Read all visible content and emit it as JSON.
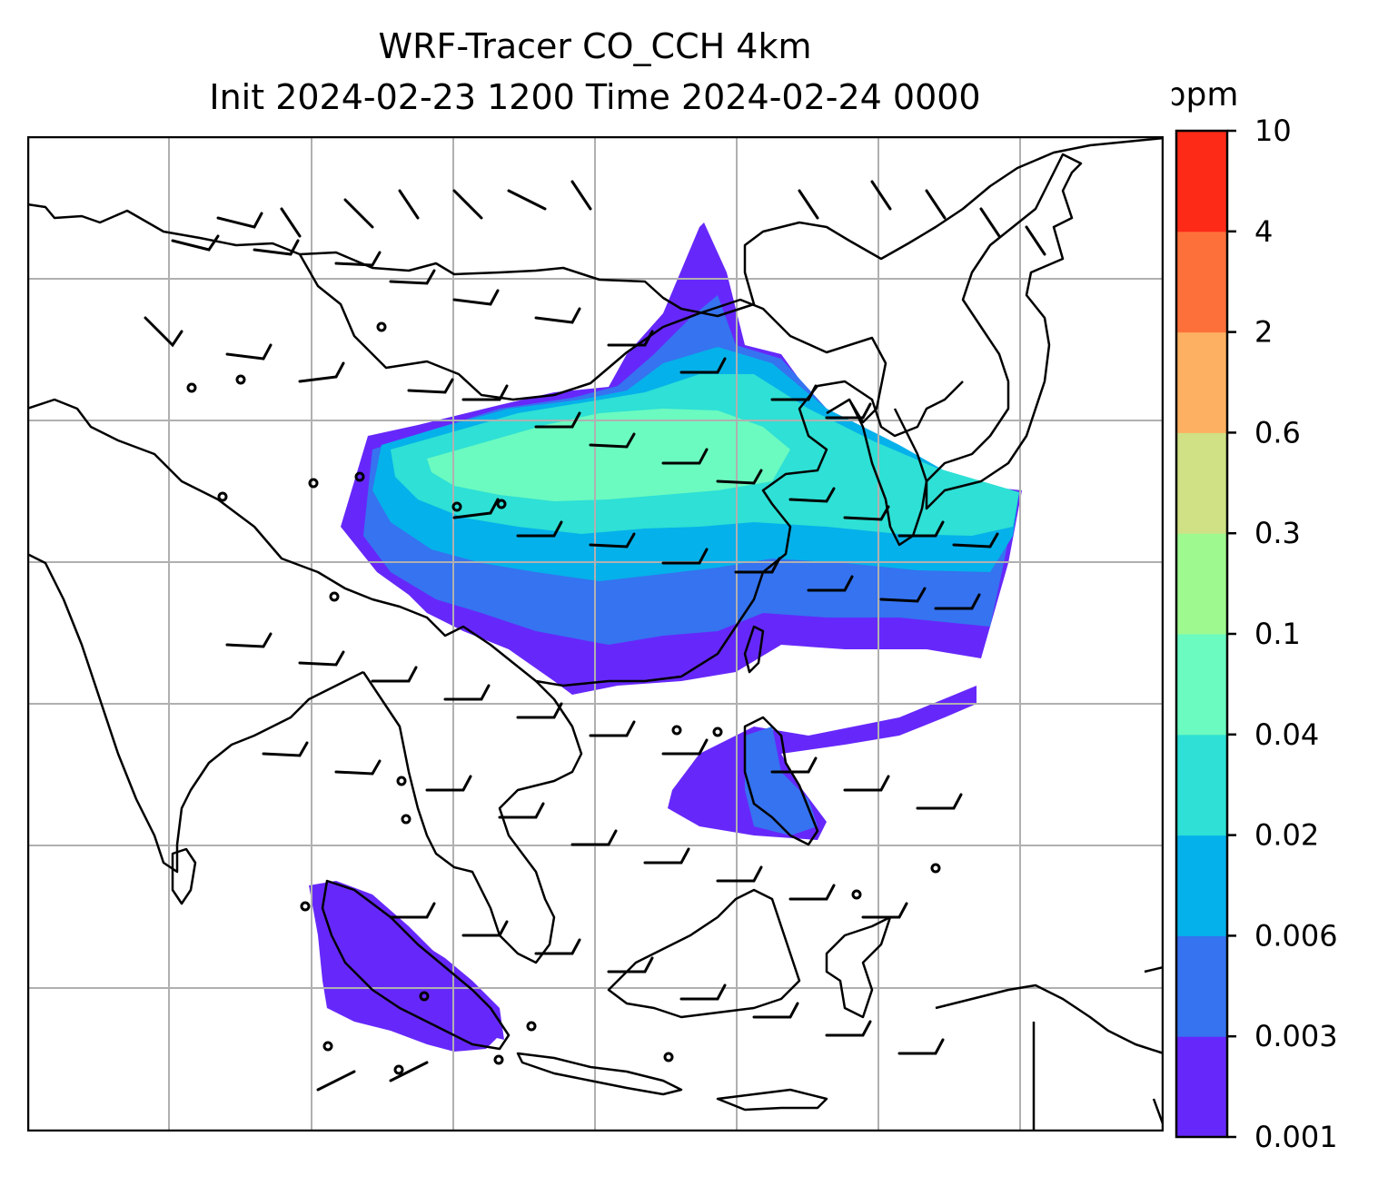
{
  "title_line1": "WRF-Tracer CO_CCH 4km",
  "title_line2": "Init 2024-02-23 1200 Time 2024-02-24 0000",
  "colorbar": {
    "unit": "ppm",
    "levels": [
      "0.001",
      "0.003",
      "0.006",
      "0.02",
      "0.04",
      "0.1",
      "0.3",
      "0.6",
      "2",
      "4",
      "10"
    ],
    "colors": [
      "#6628fa",
      "#3573f0",
      "#05b1ea",
      "#2ee0d5",
      "#6bfac0",
      "#9ef98f",
      "#cfe184",
      "#fdb061",
      "#fe703a",
      "#fe2a18"
    ]
  },
  "map": {
    "frame_color": "#000000",
    "grid_color": "#b0b0b0",
    "coastline_color": "#000000",
    "wind_symbol": "wind-barbs",
    "calm_symbol": "calm-circle"
  }
}
